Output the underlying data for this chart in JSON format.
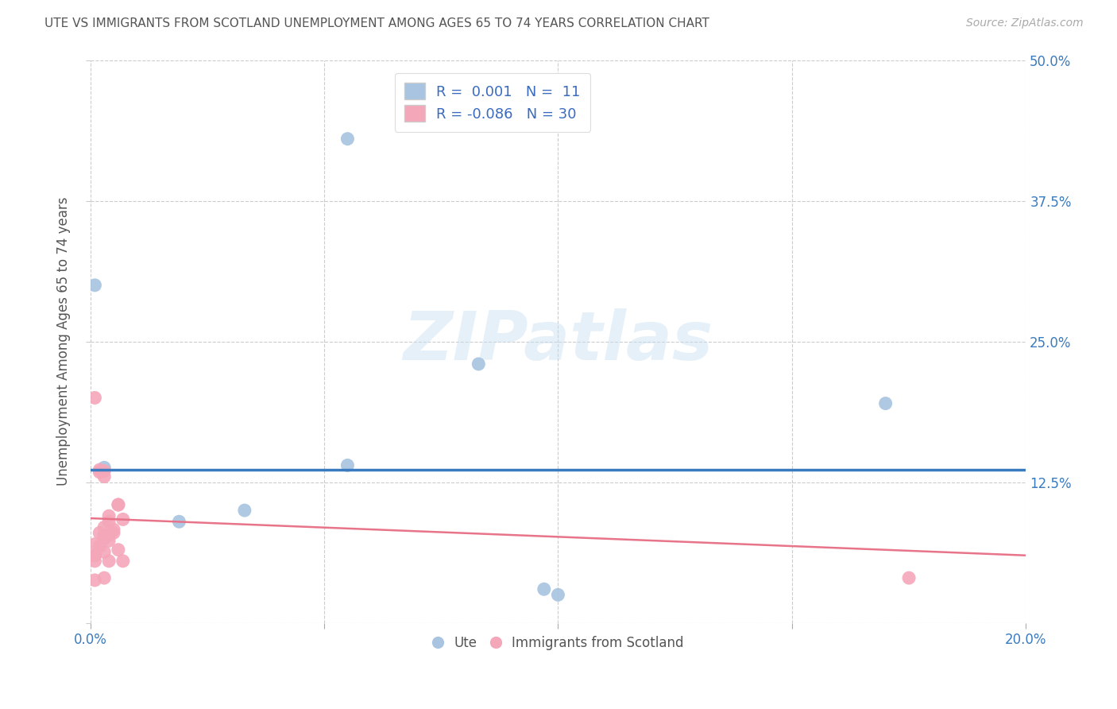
{
  "title": "UTE VS IMMIGRANTS FROM SCOTLAND UNEMPLOYMENT AMONG AGES 65 TO 74 YEARS CORRELATION CHART",
  "source": "Source: ZipAtlas.com",
  "ylabel": "Unemployment Among Ages 65 to 74 years",
  "xlim": [
    0.0,
    0.2
  ],
  "ylim": [
    0.0,
    0.5
  ],
  "xticks": [
    0.0,
    0.05,
    0.1,
    0.15,
    0.2
  ],
  "xticklabels": [
    "0.0%",
    "",
    "",
    "",
    "20.0%"
  ],
  "yticks": [
    0.0,
    0.125,
    0.25,
    0.375,
    0.5
  ],
  "yticklabels": [
    "",
    "12.5%",
    "25.0%",
    "37.5%",
    "50.0%"
  ],
  "blue_R": 0.001,
  "blue_N": 11,
  "pink_R": -0.086,
  "pink_N": 30,
  "blue_color": "#a8c4e0",
  "pink_color": "#f4a7b9",
  "blue_line_color": "#3a7bbf",
  "pink_line_color": "#e8748a",
  "legend_text_color": "#3a6bbf",
  "title_color": "#555555",
  "axis_color": "#3a7bbf",
  "grid_color": "#cccccc",
  "watermark": "ZIPatlas",
  "blue_scatter_x": [
    0.003,
    0.001,
    0.055,
    0.083,
    0.001,
    0.033,
    0.097,
    0.17,
    0.1,
    0.055,
    0.019
  ],
  "blue_scatter_y": [
    0.138,
    0.3,
    0.43,
    0.23,
    0.06,
    0.1,
    0.03,
    0.195,
    0.025,
    0.14,
    0.09
  ],
  "pink_scatter_x": [
    0.003,
    0.001,
    0.001,
    0.002,
    0.001,
    0.002,
    0.003,
    0.002,
    0.004,
    0.003,
    0.003,
    0.004,
    0.003,
    0.005,
    0.004,
    0.006,
    0.006,
    0.007,
    0.005,
    0.004,
    0.003,
    0.006,
    0.007,
    0.003,
    0.004,
    0.002,
    0.001,
    0.001,
    0.001,
    0.175
  ],
  "pink_scatter_y": [
    0.13,
    0.06,
    0.07,
    0.08,
    0.2,
    0.136,
    0.135,
    0.134,
    0.09,
    0.085,
    0.078,
    0.095,
    0.075,
    0.083,
    0.078,
    0.105,
    0.105,
    0.092,
    0.08,
    0.073,
    0.063,
    0.065,
    0.055,
    0.04,
    0.055,
    0.068,
    0.06,
    0.055,
    0.038,
    0.04
  ],
  "blue_hline_y": 0.136,
  "pink_trendline_x": [
    0.0,
    0.2
  ],
  "pink_trendline_y_start": 0.093,
  "pink_trendline_y_end": 0.06
}
